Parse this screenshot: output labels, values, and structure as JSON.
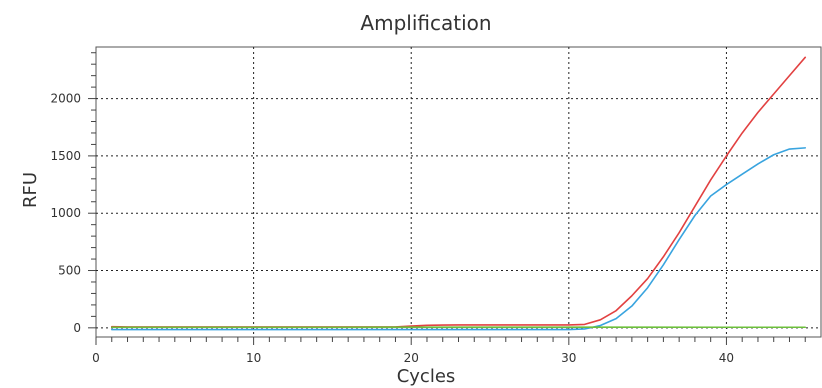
{
  "chart_data": {
    "type": "line",
    "title": "Amplification",
    "xlabel": "Cycles",
    "ylabel": "RFU",
    "xlim": [
      0,
      46
    ],
    "ylim": [
      -80,
      2450
    ],
    "x_ticks": [
      0,
      10,
      20,
      30,
      40
    ],
    "y_ticks": [
      0,
      500,
      1000,
      1500,
      2000
    ],
    "grid": "dotted at tick marks",
    "legend": "none",
    "series": [
      {
        "color": "#e24141",
        "points": [
          [
            1,
            10
          ],
          [
            2,
            8
          ],
          [
            3,
            8
          ],
          [
            4,
            8
          ],
          [
            5,
            8
          ],
          [
            6,
            8
          ],
          [
            7,
            8
          ],
          [
            8,
            8
          ],
          [
            9,
            8
          ],
          [
            10,
            8
          ],
          [
            11,
            8
          ],
          [
            12,
            8
          ],
          [
            13,
            8
          ],
          [
            14,
            8
          ],
          [
            15,
            8
          ],
          [
            16,
            8
          ],
          [
            17,
            8
          ],
          [
            18,
            8
          ],
          [
            19,
            8
          ],
          [
            20,
            15
          ],
          [
            21,
            22
          ],
          [
            22,
            24
          ],
          [
            23,
            25
          ],
          [
            24,
            25
          ],
          [
            25,
            25
          ],
          [
            26,
            25
          ],
          [
            27,
            25
          ],
          [
            28,
            25
          ],
          [
            29,
            25
          ],
          [
            30,
            25
          ],
          [
            31,
            30
          ],
          [
            32,
            70
          ],
          [
            33,
            150
          ],
          [
            34,
            280
          ],
          [
            35,
            430
          ],
          [
            36,
            620
          ],
          [
            37,
            830
          ],
          [
            38,
            1060
          ],
          [
            39,
            1290
          ],
          [
            40,
            1500
          ],
          [
            41,
            1700
          ],
          [
            42,
            1880
          ],
          [
            43,
            2040
          ],
          [
            44,
            2200
          ],
          [
            45,
            2360
          ]
        ]
      },
      {
        "color": "#39a4df",
        "points": [
          [
            1,
            -15
          ],
          [
            2,
            -15
          ],
          [
            3,
            -15
          ],
          [
            4,
            -15
          ],
          [
            5,
            -15
          ],
          [
            6,
            -15
          ],
          [
            7,
            -15
          ],
          [
            8,
            -15
          ],
          [
            9,
            -15
          ],
          [
            10,
            -15
          ],
          [
            11,
            -15
          ],
          [
            12,
            -15
          ],
          [
            13,
            -15
          ],
          [
            14,
            -15
          ],
          [
            15,
            -15
          ],
          [
            16,
            -15
          ],
          [
            17,
            -15
          ],
          [
            18,
            -15
          ],
          [
            19,
            -15
          ],
          [
            20,
            -15
          ],
          [
            21,
            -15
          ],
          [
            22,
            -15
          ],
          [
            23,
            -15
          ],
          [
            24,
            -15
          ],
          [
            25,
            -15
          ],
          [
            26,
            -15
          ],
          [
            27,
            -15
          ],
          [
            28,
            -15
          ],
          [
            29,
            -15
          ],
          [
            30,
            -15
          ],
          [
            31,
            -10
          ],
          [
            32,
            20
          ],
          [
            33,
            80
          ],
          [
            34,
            190
          ],
          [
            35,
            350
          ],
          [
            36,
            550
          ],
          [
            37,
            770
          ],
          [
            38,
            980
          ],
          [
            39,
            1150
          ],
          [
            40,
            1250
          ],
          [
            41,
            1340
          ],
          [
            42,
            1430
          ],
          [
            43,
            1510
          ],
          [
            44,
            1560
          ],
          [
            45,
            1570
          ]
        ]
      },
      {
        "color": "#6cbf3b",
        "points": [
          [
            1,
            5
          ],
          [
            5,
            5
          ],
          [
            10,
            5
          ],
          [
            15,
            5
          ],
          [
            20,
            6
          ],
          [
            25,
            6
          ],
          [
            30,
            6
          ],
          [
            35,
            6
          ],
          [
            40,
            5
          ],
          [
            45,
            5
          ]
        ]
      }
    ]
  }
}
